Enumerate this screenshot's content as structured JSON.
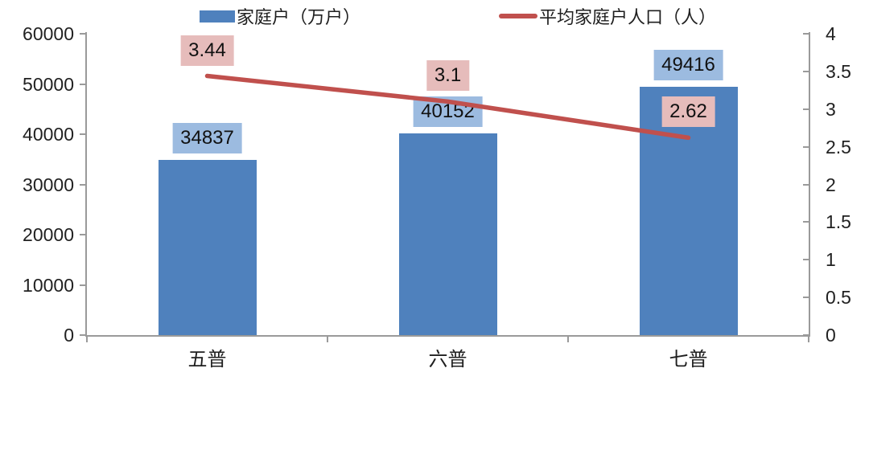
{
  "chart_data": {
    "type": "bar",
    "subtype": "bar-line-combo",
    "title": "",
    "categories": [
      "五普",
      "六普",
      "七普"
    ],
    "series": [
      {
        "name": "家庭户（万户）",
        "type": "bar",
        "axis": "left",
        "values": [
          34837,
          40152,
          49416
        ],
        "labels": [
          "34837",
          "40152",
          "49416"
        ],
        "color": "#4F81BD",
        "label_bg": "#9CBBE0"
      },
      {
        "name": "平均家庭户人口（人）",
        "type": "line",
        "axis": "right",
        "values": [
          3.44,
          3.1,
          2.62
        ],
        "labels": [
          "3.44",
          "3.1",
          "2.62"
        ],
        "color": "#C0504D",
        "label_bg": "#E6BCBB"
      }
    ],
    "left_axis": {
      "min": 0,
      "max": 60000,
      "ticks": [
        "0",
        "10000",
        "20000",
        "30000",
        "40000",
        "50000",
        "60000"
      ]
    },
    "right_axis": {
      "min": 0,
      "max": 4,
      "ticks": [
        "0",
        "0.5",
        "1",
        "1.5",
        "2",
        "2.5",
        "3",
        "3.5",
        "4"
      ]
    },
    "grid": false,
    "legend_position": "bottom",
    "legend": [
      {
        "label": "家庭户（万户）",
        "color": "#4F81BD",
        "marker": "bar"
      },
      {
        "label": "平均家庭户人口（人）",
        "color": "#C0504D",
        "marker": "line"
      }
    ],
    "axis_color": "#9A9A9A"
  }
}
